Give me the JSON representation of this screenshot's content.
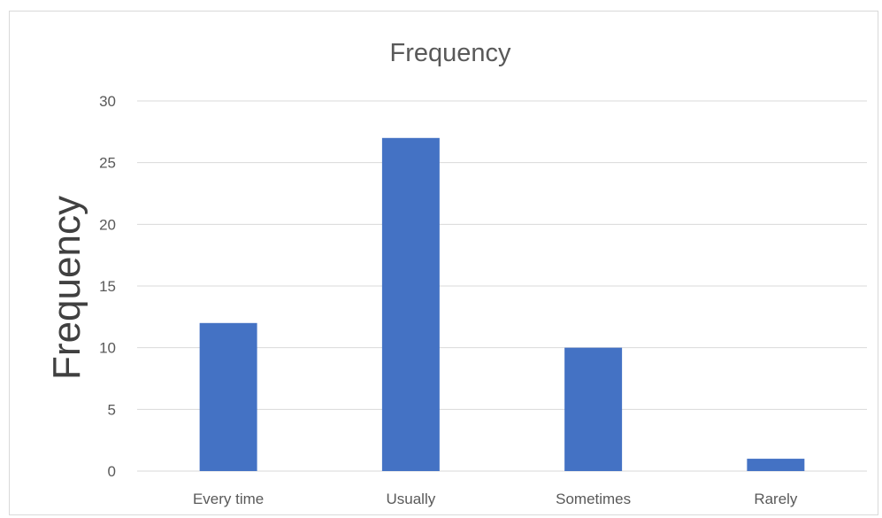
{
  "chart_data": {
    "type": "bar",
    "title": "Frequency",
    "xlabel": "",
    "ylabel": "Frequency",
    "categories": [
      "Every time",
      "Usually",
      "Sometimes",
      "Rarely"
    ],
    "values": [
      12,
      27,
      10,
      1
    ],
    "ylim": [
      0,
      30
    ],
    "yticks": [
      0,
      5,
      10,
      15,
      20,
      25,
      30
    ],
    "grid": true,
    "legend": "none",
    "bar_color": "#4472C4"
  }
}
